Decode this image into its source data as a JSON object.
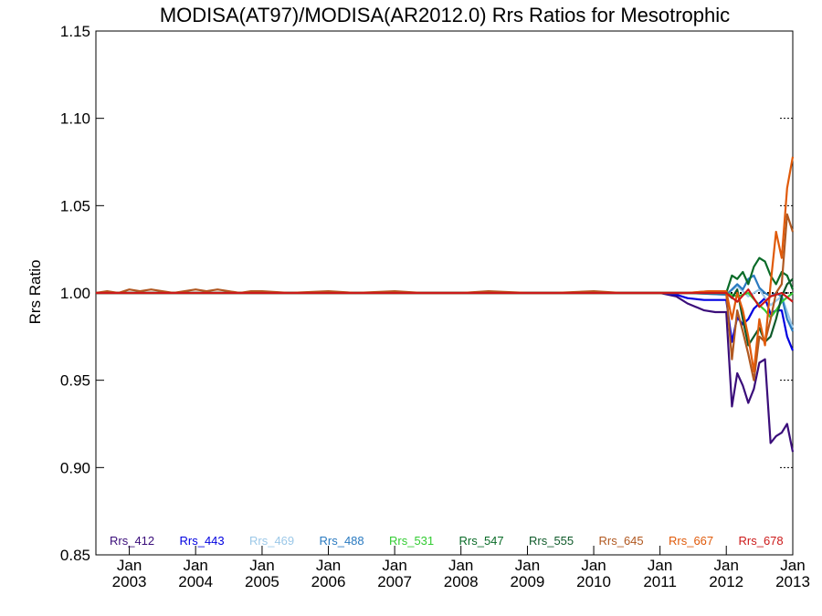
{
  "chart_data": {
    "type": "line",
    "title": "MODISA(AT97)/MODISA(AR2012.0)  Rrs Ratios for Mesotrophic",
    "ylabel": "Rrs Ratio",
    "xlabel": "",
    "ylim": [
      0.85,
      1.15
    ],
    "xlim": [
      "2002-07-01",
      "2013-01-01"
    ],
    "yticks": [
      {
        "value": 0.85,
        "label": "0.85"
      },
      {
        "value": 0.9,
        "label": "0.90"
      },
      {
        "value": 0.95,
        "label": "0.95"
      },
      {
        "value": 1.0,
        "label": "1.00"
      },
      {
        "value": 1.05,
        "label": "1.05"
      },
      {
        "value": 1.1,
        "label": "1.10"
      },
      {
        "value": 1.15,
        "label": "1.15"
      }
    ],
    "xticks": [
      {
        "date": "2003-01-01",
        "month": "Jan",
        "year": "2003"
      },
      {
        "date": "2004-01-01",
        "month": "Jan",
        "year": "2004"
      },
      {
        "date": "2005-01-01",
        "month": "Jan",
        "year": "2005"
      },
      {
        "date": "2006-01-01",
        "month": "Jan",
        "year": "2006"
      },
      {
        "date": "2007-01-01",
        "month": "Jan",
        "year": "2007"
      },
      {
        "date": "2008-01-01",
        "month": "Jan",
        "year": "2008"
      },
      {
        "date": "2009-01-01",
        "month": "Jan",
        "year": "2009"
      },
      {
        "date": "2010-01-01",
        "month": "Jan",
        "year": "2010"
      },
      {
        "date": "2011-01-01",
        "month": "Jan",
        "year": "2011"
      },
      {
        "date": "2012-01-01",
        "month": "Jan",
        "year": "2012"
      },
      {
        "date": "2013-01-01",
        "month": "Jan",
        "year": "2013"
      }
    ],
    "reference_line": {
      "y": 1.0,
      "style": "dotted",
      "color": "#000000"
    },
    "grid": "right-side tick marks only",
    "legend_position": "bottom, single row inside plot",
    "series": [
      {
        "name": "Rrs_412",
        "color": "#3a0d7a",
        "x": [
          "2002-07-01",
          "2011-01-01",
          "2011-04-01",
          "2011-06-01",
          "2011-09-01",
          "2011-11-01",
          "2011-12-01",
          "2012-01-01",
          "2012-02-01",
          "2012-03-01",
          "2012-04-01",
          "2012-05-01",
          "2012-06-01",
          "2012-07-01",
          "2012-08-01",
          "2012-09-01",
          "2012-10-01",
          "2012-11-01",
          "2012-12-01",
          "2013-01-01"
        ],
        "y": [
          1.0,
          1.0,
          0.998,
          0.994,
          0.99,
          0.989,
          0.989,
          0.989,
          0.935,
          0.954,
          0.947,
          0.937,
          0.945,
          0.96,
          0.962,
          0.914,
          0.918,
          0.92,
          0.925,
          0.909
        ]
      },
      {
        "name": "Rrs_443",
        "color": "#0000e0",
        "x": [
          "2002-07-01",
          "2011-01-01",
          "2011-04-01",
          "2011-06-01",
          "2011-09-01",
          "2011-11-01",
          "2012-01-01",
          "2012-02-01",
          "2012-03-01",
          "2012-04-01",
          "2012-05-01",
          "2012-06-01",
          "2012-07-01",
          "2012-08-01",
          "2012-09-01",
          "2012-10-01",
          "2012-11-01",
          "2012-12-01",
          "2013-01-01"
        ],
        "y": [
          1.0,
          1.0,
          0.999,
          0.997,
          0.996,
          0.996,
          0.996,
          0.972,
          0.986,
          0.982,
          0.985,
          0.991,
          0.994,
          0.997,
          0.988,
          0.99,
          0.99,
          0.975,
          0.967
        ]
      },
      {
        "name": "Rrs_469",
        "color": "#9cc8e8",
        "x": [
          "2002-07-01",
          "2011-06-01",
          "2012-01-01",
          "2012-03-01",
          "2012-05-01",
          "2012-07-01",
          "2012-09-01",
          "2012-11-01",
          "2013-01-01"
        ],
        "y": [
          1.0,
          1.0,
          0.999,
          1.004,
          0.998,
          1.002,
          0.993,
          0.998,
          0.98
        ]
      },
      {
        "name": "Rrs_488",
        "color": "#2a7ac0",
        "x": [
          "2002-07-01",
          "2011-06-01",
          "2012-01-01",
          "2012-02-01",
          "2012-03-01",
          "2012-04-01",
          "2012-05-01",
          "2012-06-01",
          "2012-07-01",
          "2012-08-01",
          "2012-09-01",
          "2012-10-01",
          "2012-11-01",
          "2012-12-01",
          "2013-01-01"
        ],
        "y": [
          1.0,
          1.0,
          0.999,
          1.002,
          1.005,
          1.002,
          1.008,
          1.01,
          1.003,
          1.0,
          0.998,
          1.0,
          0.998,
          0.985,
          0.978
        ]
      },
      {
        "name": "Rrs_531",
        "color": "#33cc33",
        "x": [
          "2002-07-01",
          "2011-06-01",
          "2012-01-01",
          "2012-03-01",
          "2012-05-01",
          "2012-07-01",
          "2012-08-01",
          "2012-09-01",
          "2012-10-01",
          "2012-11-01",
          "2013-01-01"
        ],
        "y": [
          1.0,
          1.0,
          1.0,
          0.998,
          1.0,
          0.993,
          0.99,
          0.986,
          0.99,
          0.995,
          1.0
        ]
      },
      {
        "name": "Rrs_547",
        "color": "#0a6b28",
        "x": [
          "2002-07-01",
          "2011-06-01",
          "2012-01-01",
          "2012-02-01",
          "2012-03-01",
          "2012-04-01",
          "2012-05-01",
          "2012-06-01",
          "2012-07-01",
          "2012-08-01",
          "2012-09-01",
          "2012-10-01",
          "2012-11-01",
          "2012-12-01",
          "2013-01-01"
        ],
        "y": [
          1.0,
          1.0,
          1.0,
          1.01,
          1.008,
          1.012,
          1.005,
          1.015,
          1.02,
          1.018,
          1.01,
          1.005,
          1.012,
          1.01,
          1.002
        ]
      },
      {
        "name": "Rrs_555",
        "color": "#0f5a2a",
        "x": [
          "2002-07-01",
          "2011-06-01",
          "2012-01-01",
          "2012-02-01",
          "2012-03-01",
          "2012-04-01",
          "2012-05-01",
          "2012-06-01",
          "2012-07-01",
          "2012-08-01",
          "2012-09-01",
          "2012-10-01",
          "2012-11-01",
          "2012-12-01",
          "2013-01-01"
        ],
        "y": [
          1.0,
          1.0,
          1.0,
          0.997,
          1.002,
          0.985,
          0.97,
          0.975,
          0.98,
          0.972,
          0.975,
          0.985,
          0.998,
          1.005,
          1.008
        ]
      },
      {
        "name": "Rrs_645",
        "color": "#b05820",
        "x": [
          "2002-07-01",
          "2002-09-01",
          "2002-11-01",
          "2003-01-01",
          "2003-03-01",
          "2003-05-01",
          "2003-07-01",
          "2003-09-01",
          "2003-11-01",
          "2004-01-01",
          "2004-03-01",
          "2004-05-01",
          "2004-07-01",
          "2004-09-01",
          "2004-11-01",
          "2005-01-01",
          "2005-06-01",
          "2006-01-01",
          "2006-06-01",
          "2007-01-01",
          "2007-06-01",
          "2008-01-01",
          "2008-06-01",
          "2009-01-01",
          "2009-06-01",
          "2010-01-01",
          "2010-06-01",
          "2011-01-01",
          "2011-06-01",
          "2011-10-01",
          "2012-01-01",
          "2012-02-01",
          "2012-03-01",
          "2012-04-01",
          "2012-05-01",
          "2012-06-01",
          "2012-07-01",
          "2012-08-01",
          "2012-09-01",
          "2012-10-01",
          "2012-11-01",
          "2012-12-01",
          "2013-01-01"
        ],
        "y": [
          1.0,
          1.001,
          1.0,
          1.002,
          1.001,
          1.002,
          1.001,
          1.0,
          1.001,
          1.002,
          1.001,
          1.002,
          1.001,
          1.0,
          1.001,
          1.001,
          1.0,
          1.001,
          1.0,
          1.001,
          1.0,
          1.0,
          1.001,
          1.0,
          1.0,
          1.001,
          1.0,
          1.0,
          1.0,
          1.001,
          1.0,
          0.962,
          0.99,
          0.978,
          0.965,
          0.95,
          0.975,
          0.972,
          0.985,
          1.0,
          1.005,
          1.045,
          1.035
        ]
      },
      {
        "name": "Rrs_667",
        "color": "#e05a0a",
        "x": [
          "2002-07-01",
          "2011-06-01",
          "2011-10-01",
          "2012-01-01",
          "2012-02-01",
          "2012-03-01",
          "2012-04-01",
          "2012-05-01",
          "2012-06-01",
          "2012-07-01",
          "2012-08-01",
          "2012-09-01",
          "2012-10-01",
          "2012-11-01",
          "2012-12-01",
          "2013-01-01"
        ],
        "y": [
          1.0,
          1.0,
          1.001,
          1.001,
          0.985,
          1.0,
          0.99,
          0.975,
          0.955,
          0.985,
          0.97,
          1.005,
          1.035,
          1.02,
          1.06,
          1.078
        ]
      },
      {
        "name": "Rrs_678",
        "color": "#cc1a1a",
        "x": [
          "2002-07-01",
          "2011-06-01",
          "2012-01-01",
          "2012-03-01",
          "2012-05-01",
          "2012-07-01",
          "2012-09-01",
          "2012-11-01",
          "2013-01-01"
        ],
        "y": [
          1.0,
          1.0,
          1.0,
          0.995,
          1.002,
          0.992,
          0.998,
          1.0,
          0.995
        ]
      }
    ]
  }
}
